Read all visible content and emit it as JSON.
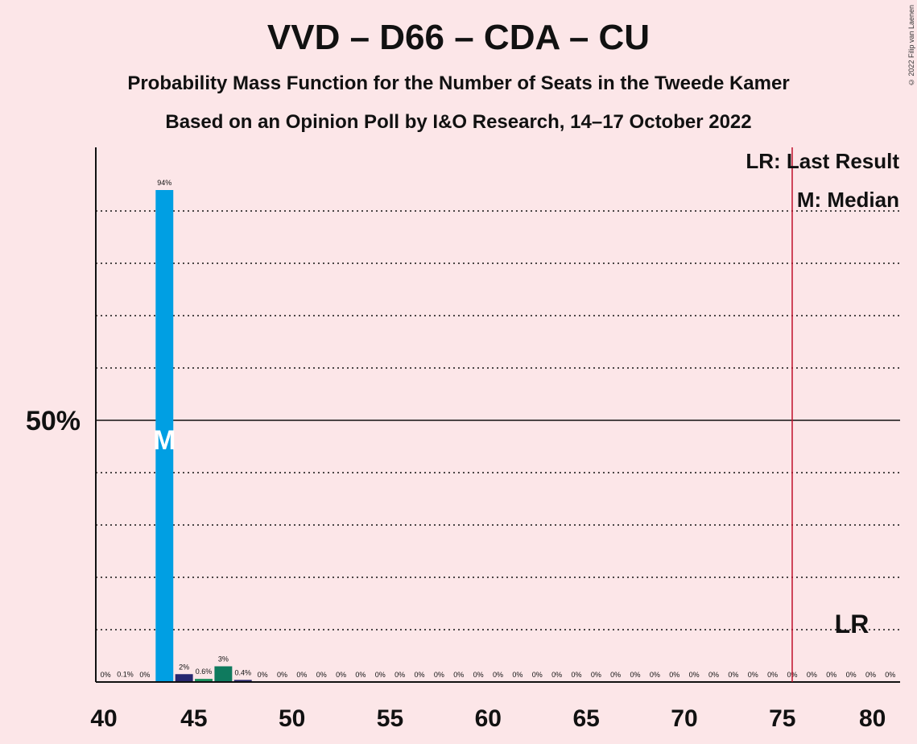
{
  "header": {
    "title": "VVD – D66 – CDA – CU",
    "subtitle1": "Probability Mass Function for the Number of Seats in the Tweede Kamer",
    "subtitle2": "Based on an Opinion Poll by I&O Research, 14–17 October 2022",
    "copyright": "© 2022 Filip van Laenen"
  },
  "legend": {
    "lr": "LR: Last Result",
    "median": "M: Median",
    "lr_marker": "LR",
    "median_marker": "M"
  },
  "chart_data": {
    "type": "bar",
    "title": "VVD – D66 – CDA – CU",
    "xlabel": "",
    "ylabel": "",
    "xlim": [
      40,
      80
    ],
    "ylim": [
      0,
      100
    ],
    "x_ticks": [
      40,
      45,
      50,
      55,
      60,
      65,
      70,
      75,
      80
    ],
    "y_ticks_labeled": [
      {
        "value": 50,
        "label": "50%"
      }
    ],
    "gridlines": [
      10,
      20,
      30,
      40,
      60,
      70,
      80,
      90
    ],
    "median_seat": 43,
    "last_result_seat": 76,
    "x": [
      40,
      41,
      42,
      43,
      44,
      45,
      46,
      47,
      48,
      49,
      50,
      51,
      52,
      53,
      54,
      55,
      56,
      57,
      58,
      59,
      60,
      61,
      62,
      63,
      64,
      65,
      66,
      67,
      68,
      69,
      70,
      71,
      72,
      73,
      74,
      75,
      76,
      77,
      78,
      79,
      80
    ],
    "values": [
      0,
      0.1,
      0,
      94,
      1.5,
      0.6,
      3,
      0.4,
      0,
      0,
      0,
      0,
      0,
      0,
      0,
      0,
      0,
      0,
      0,
      0,
      0,
      0,
      0,
      0,
      0,
      0,
      0,
      0,
      0,
      0,
      0,
      0,
      0,
      0,
      0,
      0,
      0,
      0,
      0,
      0,
      0
    ],
    "labels": [
      "0%",
      "0.1%",
      "0%",
      "94%",
      "2%",
      "0.6%",
      "3%",
      "0.4%",
      "0%",
      "0%",
      "0%",
      "0%",
      "0%",
      "0%",
      "0%",
      "0%",
      "0%",
      "0%",
      "0%",
      "0%",
      "0%",
      "0%",
      "0%",
      "0%",
      "0%",
      "0%",
      "0%",
      "0%",
      "0%",
      "0%",
      "0%",
      "0%",
      "0%",
      "0%",
      "0%",
      "0%",
      "0%",
      "0%",
      "0%",
      "0%",
      "0%"
    ],
    "colors": {
      "43": "#009fe3",
      "44": "#27276f",
      "45": "#1a8f5c",
      "46": "#0f7a5e",
      "47": "#27276f",
      "default": "#27276f",
      "last_result_line": "#c0102a",
      "axis": "#111111"
    }
  }
}
